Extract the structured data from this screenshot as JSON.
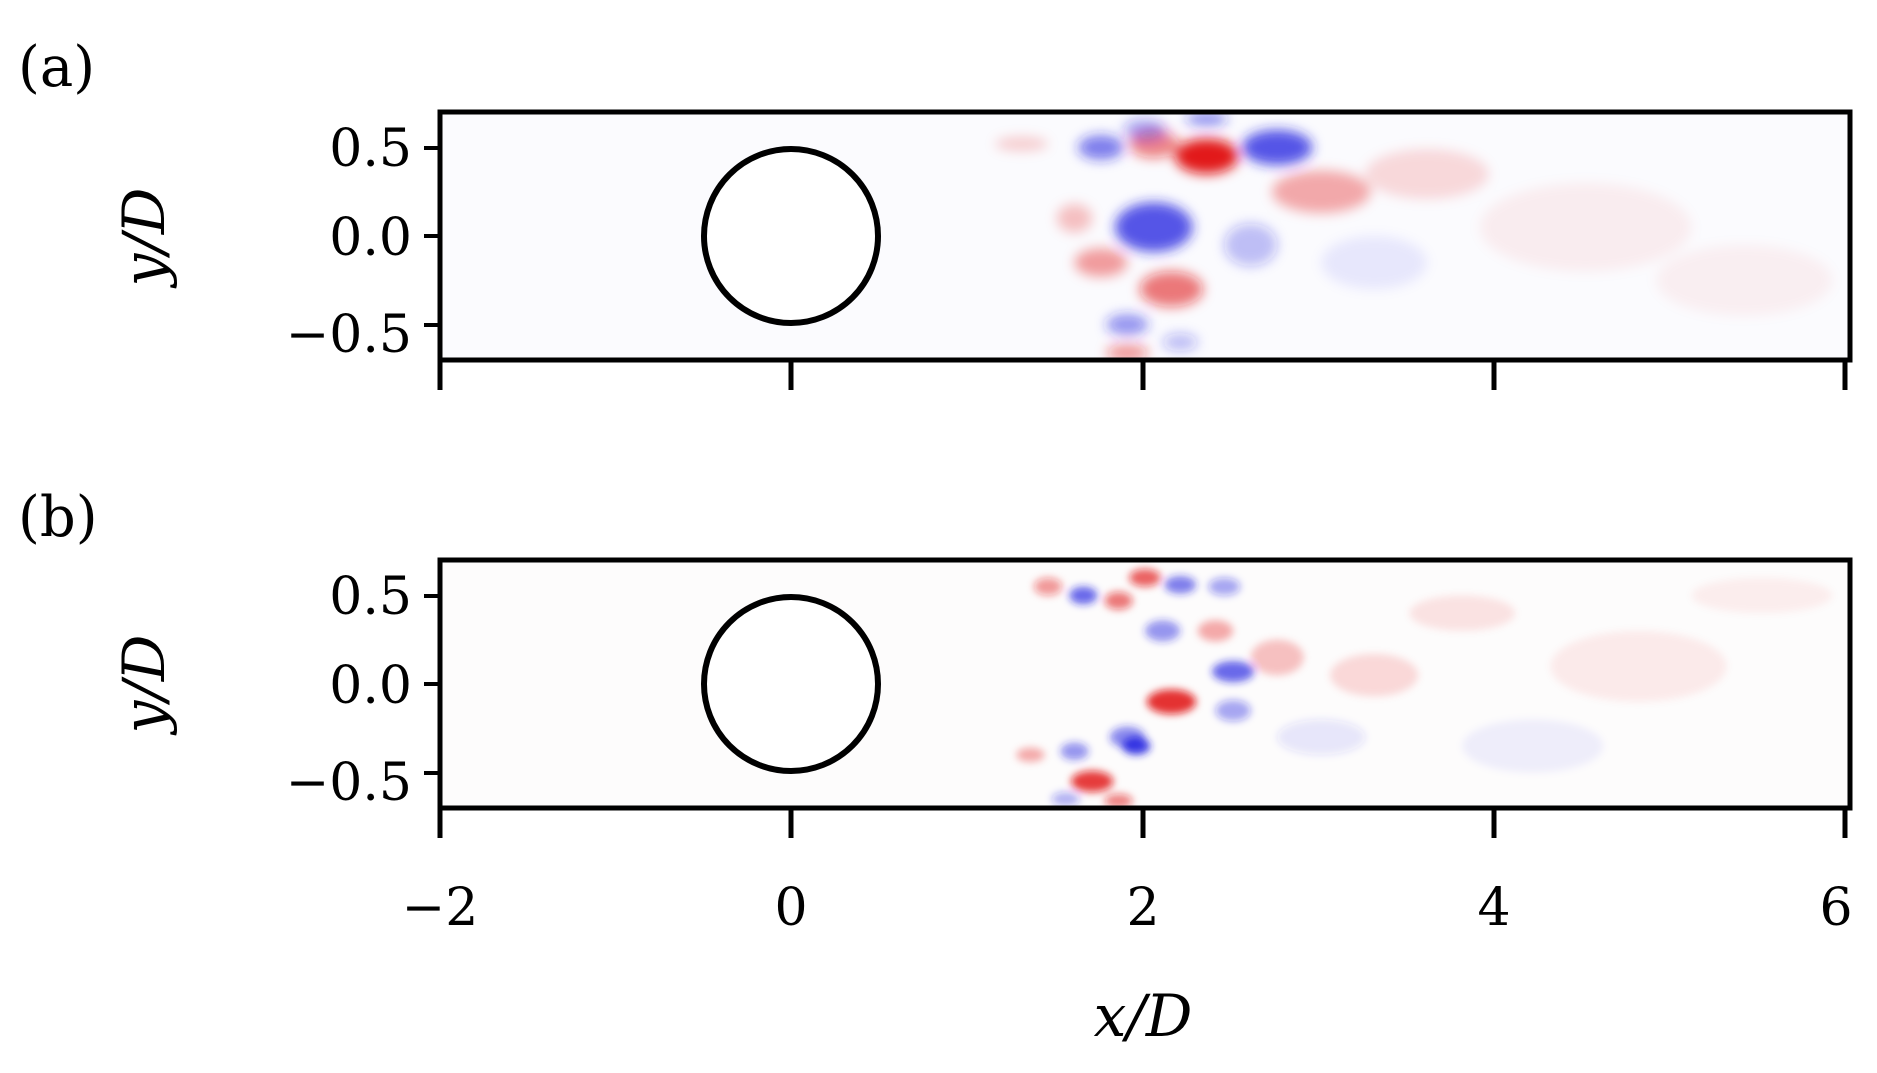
{
  "chart_data": [
    {
      "type": "heatmap",
      "panel_label": "(a)",
      "xlabel": "",
      "ylabel": "y/D",
      "xlim": [
        -2,
        6
      ],
      "ylim": [
        -0.7,
        0.7
      ],
      "xticks": [
        -2,
        0,
        2,
        4,
        6
      ],
      "xtick_labels": [
        "",
        "",
        "",
        "",
        ""
      ],
      "yticks": [
        0.5,
        0.0,
        -0.5
      ],
      "ytick_labels": [
        "0.5",
        "0.0",
        "−0.5"
      ],
      "colormap": {
        "negative": "#2020e0",
        "zero": "#ffffff",
        "positive": "#e01010"
      },
      "cylinder": {
        "x": 0,
        "y": 0,
        "d": 1
      },
      "blobs": [
        {
          "x": 2.35,
          "y": 0.45,
          "sx": 0.18,
          "sy": 0.1,
          "v": 1.0
        },
        {
          "x": 2.05,
          "y": 0.52,
          "sx": 0.14,
          "sy": 0.08,
          "v": 0.55
        },
        {
          "x": 1.75,
          "y": 0.5,
          "sx": 0.13,
          "sy": 0.07,
          "v": -0.6
        },
        {
          "x": 2.0,
          "y": 0.6,
          "sx": 0.12,
          "sy": 0.06,
          "v": -0.4
        },
        {
          "x": 2.75,
          "y": 0.5,
          "sx": 0.2,
          "sy": 0.1,
          "v": -0.8
        },
        {
          "x": 2.35,
          "y": 0.66,
          "sx": 0.12,
          "sy": 0.04,
          "v": -0.5
        },
        {
          "x": 3.0,
          "y": 0.25,
          "sx": 0.28,
          "sy": 0.12,
          "v": 0.35
        },
        {
          "x": 2.05,
          "y": 0.05,
          "sx": 0.22,
          "sy": 0.14,
          "v": -0.8
        },
        {
          "x": 2.6,
          "y": -0.05,
          "sx": 0.15,
          "sy": 0.12,
          "v": -0.3
        },
        {
          "x": 1.6,
          "y": 0.1,
          "sx": 0.1,
          "sy": 0.08,
          "v": 0.25
        },
        {
          "x": 1.75,
          "y": -0.15,
          "sx": 0.15,
          "sy": 0.08,
          "v": 0.4
        },
        {
          "x": 2.15,
          "y": -0.3,
          "sx": 0.18,
          "sy": 0.1,
          "v": 0.6
        },
        {
          "x": 1.9,
          "y": -0.5,
          "sx": 0.12,
          "sy": 0.06,
          "v": -0.5
        },
        {
          "x": 1.9,
          "y": -0.66,
          "sx": 0.12,
          "sy": 0.05,
          "v": 0.45
        },
        {
          "x": 2.2,
          "y": -0.6,
          "sx": 0.1,
          "sy": 0.05,
          "v": -0.3
        },
        {
          "x": 1.3,
          "y": 0.52,
          "sx": 0.15,
          "sy": 0.04,
          "v": 0.2
        },
        {
          "x": 3.6,
          "y": 0.35,
          "sx": 0.35,
          "sy": 0.14,
          "v": 0.15
        },
        {
          "x": 4.5,
          "y": 0.05,
          "sx": 0.6,
          "sy": 0.25,
          "v": 0.06
        },
        {
          "x": 3.3,
          "y": -0.15,
          "sx": 0.3,
          "sy": 0.15,
          "v": -0.08
        },
        {
          "x": 5.4,
          "y": -0.25,
          "sx": 0.5,
          "sy": 0.2,
          "v": 0.05
        }
      ]
    },
    {
      "type": "heatmap",
      "panel_label": "(b)",
      "xlabel": "x/D",
      "ylabel": "y/D",
      "xlim": [
        -2,
        6
      ],
      "ylim": [
        -0.7,
        0.7
      ],
      "xticks": [
        -2,
        0,
        2,
        4,
        6
      ],
      "xtick_labels": [
        "−2",
        "0",
        "2",
        "4",
        "6"
      ],
      "yticks": [
        0.5,
        0.0,
        -0.5
      ],
      "ytick_labels": [
        "0.5",
        "0.0",
        "−0.5"
      ],
      "colormap": {
        "negative": "#2020e0",
        "zero": "#ffffff",
        "positive": "#e01010"
      },
      "cylinder": {
        "x": 0,
        "y": 0,
        "d": 1
      },
      "blobs": [
        {
          "x": 1.45,
          "y": 0.55,
          "sx": 0.08,
          "sy": 0.05,
          "v": 0.45
        },
        {
          "x": 1.65,
          "y": 0.5,
          "sx": 0.08,
          "sy": 0.05,
          "v": -0.7
        },
        {
          "x": 1.85,
          "y": 0.47,
          "sx": 0.08,
          "sy": 0.05,
          "v": 0.6
        },
        {
          "x": 2.0,
          "y": 0.6,
          "sx": 0.09,
          "sy": 0.05,
          "v": 0.7
        },
        {
          "x": 2.2,
          "y": 0.56,
          "sx": 0.09,
          "sy": 0.05,
          "v": -0.6
        },
        {
          "x": 2.45,
          "y": 0.55,
          "sx": 0.09,
          "sy": 0.05,
          "v": -0.4
        },
        {
          "x": 2.1,
          "y": 0.3,
          "sx": 0.1,
          "sy": 0.06,
          "v": -0.5
        },
        {
          "x": 2.4,
          "y": 0.3,
          "sx": 0.1,
          "sy": 0.06,
          "v": 0.35
        },
        {
          "x": 2.5,
          "y": 0.07,
          "sx": 0.12,
          "sy": 0.06,
          "v": -0.7
        },
        {
          "x": 2.15,
          "y": -0.1,
          "sx": 0.14,
          "sy": 0.07,
          "v": 0.9
        },
        {
          "x": 2.5,
          "y": -0.15,
          "sx": 0.1,
          "sy": 0.06,
          "v": -0.4
        },
        {
          "x": 1.9,
          "y": -0.3,
          "sx": 0.1,
          "sy": 0.06,
          "v": -0.55
        },
        {
          "x": 1.95,
          "y": -0.35,
          "sx": 0.08,
          "sy": 0.05,
          "v": -0.9
        },
        {
          "x": 1.6,
          "y": -0.38,
          "sx": 0.08,
          "sy": 0.05,
          "v": -0.5
        },
        {
          "x": 1.7,
          "y": -0.55,
          "sx": 0.12,
          "sy": 0.06,
          "v": 0.85
        },
        {
          "x": 1.35,
          "y": -0.4,
          "sx": 0.08,
          "sy": 0.04,
          "v": 0.35
        },
        {
          "x": 1.55,
          "y": -0.65,
          "sx": 0.08,
          "sy": 0.04,
          "v": -0.35
        },
        {
          "x": 1.85,
          "y": -0.66,
          "sx": 0.08,
          "sy": 0.04,
          "v": 0.55
        },
        {
          "x": 2.75,
          "y": 0.15,
          "sx": 0.15,
          "sy": 0.1,
          "v": 0.25
        },
        {
          "x": 3.3,
          "y": 0.05,
          "sx": 0.25,
          "sy": 0.12,
          "v": 0.15
        },
        {
          "x": 3.8,
          "y": 0.4,
          "sx": 0.3,
          "sy": 0.1,
          "v": 0.1
        },
        {
          "x": 3.0,
          "y": -0.3,
          "sx": 0.25,
          "sy": 0.1,
          "v": -0.12
        },
        {
          "x": 4.8,
          "y": 0.1,
          "sx": 0.5,
          "sy": 0.2,
          "v": 0.07
        },
        {
          "x": 4.2,
          "y": -0.35,
          "sx": 0.4,
          "sy": 0.15,
          "v": -0.06
        },
        {
          "x": 5.5,
          "y": 0.5,
          "sx": 0.4,
          "sy": 0.1,
          "v": 0.06
        }
      ]
    }
  ]
}
